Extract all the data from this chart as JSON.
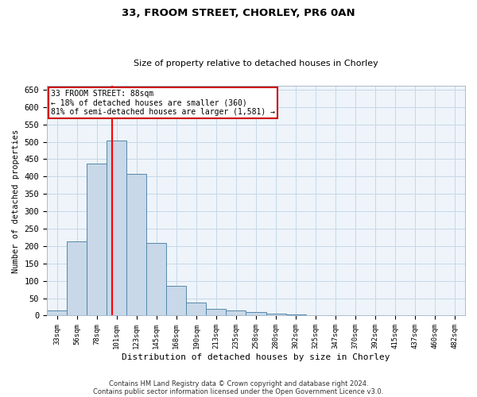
{
  "title1": "33, FROOM STREET, CHORLEY, PR6 0AN",
  "title2": "Size of property relative to detached houses in Chorley",
  "xlabel": "Distribution of detached houses by size in Chorley",
  "ylabel": "Number of detached properties",
  "categories": [
    "33sqm",
    "56sqm",
    "78sqm",
    "101sqm",
    "123sqm",
    "145sqm",
    "168sqm",
    "190sqm",
    "213sqm",
    "235sqm",
    "258sqm",
    "280sqm",
    "302sqm",
    "325sqm",
    "347sqm",
    "370sqm",
    "392sqm",
    "415sqm",
    "437sqm",
    "460sqm",
    "482sqm"
  ],
  "values": [
    15,
    213,
    437,
    503,
    407,
    208,
    85,
    38,
    20,
    15,
    10,
    5,
    3,
    2,
    1,
    1,
    1,
    0,
    0,
    0,
    0
  ],
  "bar_color": "#c8d8e8",
  "bar_edge_color": "#5588aa",
  "grid_color": "#c5d8e8",
  "bg_color": "#eef4fa",
  "red_line_x": 2.78,
  "annotation_line1": "33 FROOM STREET: 88sqm",
  "annotation_line2": "← 18% of detached houses are smaller (360)",
  "annotation_line3": "81% of semi-detached houses are larger (1,581) →",
  "annotation_box_color": "#ffffff",
  "annotation_box_edge": "#cc0000",
  "ylim": [
    0,
    660
  ],
  "yticks": [
    0,
    50,
    100,
    150,
    200,
    250,
    300,
    350,
    400,
    450,
    500,
    550,
    600,
    650
  ],
  "footer1": "Contains HM Land Registry data © Crown copyright and database right 2024.",
  "footer2": "Contains public sector information licensed under the Open Government Licence v3.0."
}
